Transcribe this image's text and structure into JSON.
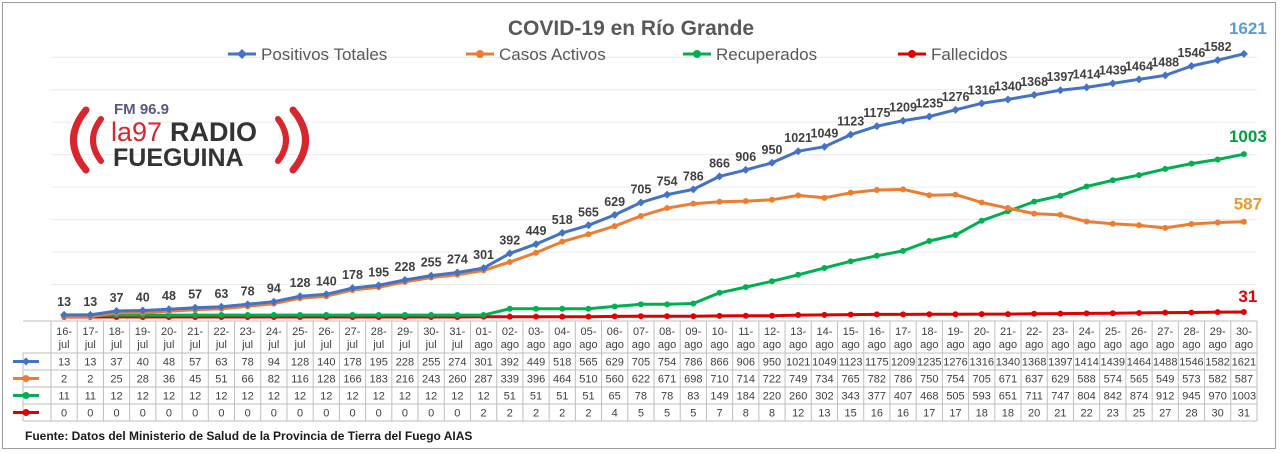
{
  "chart_data": {
    "type": "line",
    "title": "COVID-19 en Río Grande",
    "legend_position": "top",
    "categories": [
      "16-jul",
      "17-jul",
      "18-jul",
      "19-jul",
      "20-jul",
      "21-jul",
      "22-jul",
      "23-jul",
      "24-jul",
      "25-jul",
      "26-jul",
      "27-jul",
      "28-jul",
      "29-jul",
      "30-jul",
      "31-jul",
      "01-ago",
      "02-ago",
      "03-ago",
      "04-ago",
      "05-ago",
      "06-ago",
      "07-ago",
      "08-ago",
      "09-ago",
      "10-ago",
      "11-ago",
      "12-ago",
      "13-ago",
      "14-ago",
      "15-ago",
      "16-ago",
      "17-ago",
      "18-ago",
      "19-ago",
      "20-ago",
      "21-ago",
      "22-ago",
      "23-ago",
      "24-ago",
      "25-ago",
      "26-ago",
      "27-ago",
      "28-ago",
      "29-ago",
      "30-ago"
    ],
    "ylim": [
      0,
      1700
    ],
    "grid": true,
    "series": [
      {
        "name": "Positivos Totales",
        "color": "#4472c4",
        "marker": "diamond",
        "label_color": "#404040",
        "end_label_color": "#5b9bd5",
        "values": [
          13,
          13,
          37,
          40,
          48,
          57,
          63,
          78,
          94,
          128,
          140,
          178,
          195,
          228,
          255,
          274,
          301,
          392,
          449,
          518,
          565,
          629,
          705,
          754,
          786,
          866,
          906,
          950,
          1021,
          1049,
          1123,
          1175,
          1209,
          1235,
          1276,
          1316,
          1340,
          1368,
          1397,
          1414,
          1439,
          1464,
          1488,
          1546,
          1582,
          1621
        ]
      },
      {
        "name": "Casos Activos",
        "color": "#ed7d31",
        "marker": "circle",
        "label_color": "#e69b2e",
        "values": [
          2,
          2,
          25,
          28,
          36,
          45,
          51,
          66,
          82,
          116,
          128,
          166,
          183,
          216,
          243,
          260,
          287,
          339,
          396,
          464,
          510,
          560,
          622,
          671,
          698,
          710,
          714,
          722,
          749,
          734,
          765,
          782,
          786,
          750,
          754,
          705,
          671,
          637,
          629,
          588,
          574,
          565,
          549,
          573,
          582,
          587
        ]
      },
      {
        "name": "Recuperados",
        "color": "#00b050",
        "marker": "circle",
        "label_color": "#00a03c",
        "values": [
          11,
          11,
          12,
          12,
          12,
          12,
          12,
          12,
          12,
          12,
          12,
          12,
          12,
          12,
          12,
          12,
          12,
          51,
          51,
          51,
          51,
          65,
          78,
          78,
          83,
          149,
          184,
          220,
          260,
          302,
          343,
          377,
          407,
          468,
          505,
          593,
          651,
          711,
          747,
          804,
          842,
          874,
          912,
          945,
          970,
          1003
        ]
      },
      {
        "name": "Fallecidos",
        "color": "#e00000",
        "marker": "circle",
        "label_color": "#e00000",
        "values": [
          0,
          0,
          0,
          0,
          0,
          0,
          0,
          0,
          0,
          0,
          0,
          0,
          0,
          0,
          0,
          0,
          2,
          2,
          2,
          2,
          2,
          4,
          5,
          5,
          5,
          7,
          8,
          8,
          12,
          13,
          15,
          16,
          16,
          17,
          17,
          18,
          18,
          20,
          21,
          22,
          23,
          25,
          27,
          28,
          30,
          31
        ]
      }
    ]
  },
  "logo": {
    "freq": "FM 96.9",
    "brand": "la97",
    "radio": "RADIO",
    "name": "FUEGUINA",
    "colors": {
      "red": "#d8262d",
      "purple": "#5a5783",
      "dark": "#333333"
    }
  },
  "source": "Fuente: Datos del Ministerio de Salud de la Provincia de Tierra del Fuego AIAS"
}
